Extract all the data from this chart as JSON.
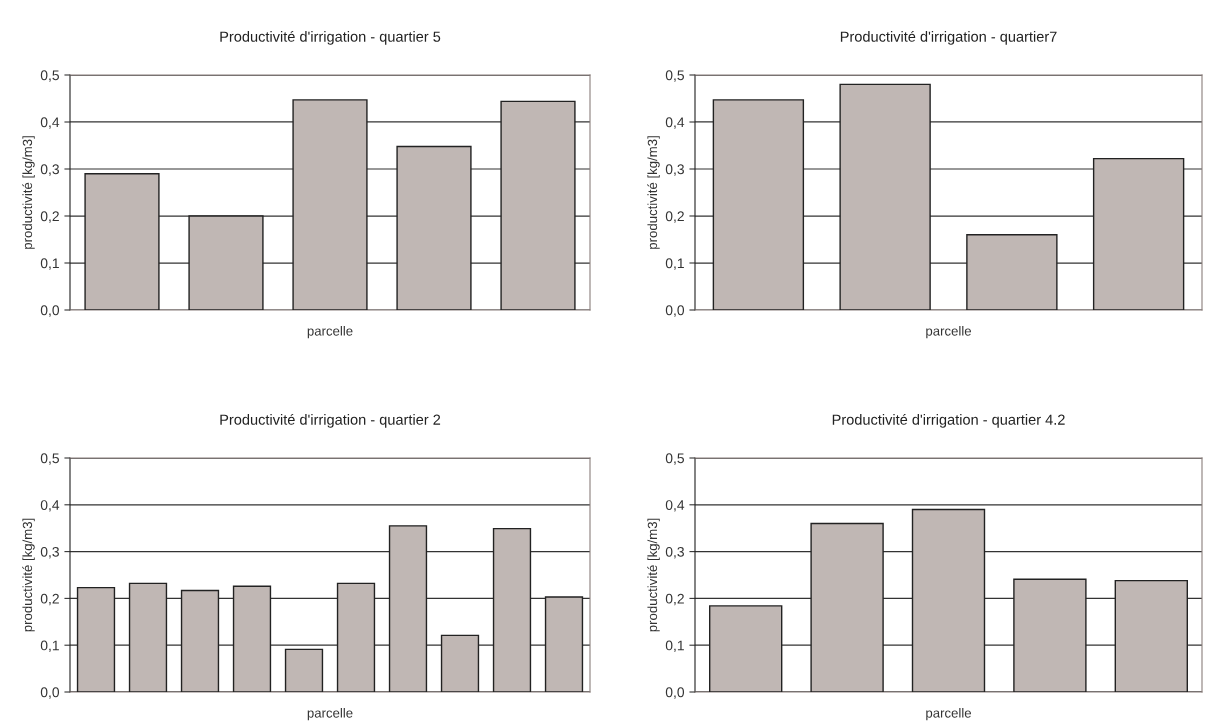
{
  "chart_data": [
    {
      "type": "bar",
      "title": "Productivité d'irrigation - quartier 5",
      "xlabel": "parcelle",
      "ylabel": "productivité [kg/m3]",
      "categories": [
        null,
        null,
        null,
        null,
        null
      ],
      "values": [
        0.29,
        0.2,
        0.447,
        0.348,
        0.444
      ],
      "color": "#c0b7b4",
      "ylim": [
        0,
        0.5
      ],
      "yticks": [
        {
          "value": 0,
          "label": "0,0"
        },
        {
          "value": 0.1,
          "label": "0,1"
        },
        {
          "value": 0.2,
          "label": "0,2"
        },
        {
          "value": 0.3,
          "label": "0,3"
        },
        {
          "value": 0.4,
          "label": "0,4"
        },
        {
          "value": 0.5,
          "label": "0,5"
        }
      ],
      "grid": "y",
      "legend": false
    },
    {
      "type": "bar",
      "title": "Productivité d'irrigation - quartier7",
      "xlabel": "parcelle",
      "ylabel": "productivité [kg/m3]",
      "categories": [
        null,
        null,
        null,
        null
      ],
      "values": [
        0.447,
        0.48,
        0.16,
        0.322
      ],
      "color": "#c0b7b4",
      "ylim": [
        0,
        0.5
      ],
      "yticks": [
        {
          "value": 0,
          "label": "0,0"
        },
        {
          "value": 0.1,
          "label": "0,1"
        },
        {
          "value": 0.2,
          "label": "0,2"
        },
        {
          "value": 0.3,
          "label": "0,3"
        },
        {
          "value": 0.4,
          "label": "0,4"
        },
        {
          "value": 0.5,
          "label": "0,5"
        }
      ],
      "grid": "y",
      "legend": false
    },
    {
      "type": "bar",
      "title": "Productivité d'irrigation - quartier 2",
      "xlabel": "parcelle",
      "ylabel": "productivité [kg/m3]",
      "categories": [
        null,
        null,
        null,
        null,
        null,
        null,
        null,
        null,
        null,
        null
      ],
      "values": [
        0.223,
        0.232,
        0.217,
        0.226,
        0.091,
        0.232,
        0.355,
        0.121,
        0.349,
        0.203
      ],
      "color": "#c0b7b4",
      "ylim": [
        0,
        0.5
      ],
      "yticks": [
        {
          "value": 0,
          "label": "0,0"
        },
        {
          "value": 0.1,
          "label": "0,1"
        },
        {
          "value": 0.2,
          "label": "0,2"
        },
        {
          "value": 0.3,
          "label": "0,3"
        },
        {
          "value": 0.4,
          "label": "0,4"
        },
        {
          "value": 0.5,
          "label": "0,5"
        }
      ],
      "grid": "y",
      "legend": false
    },
    {
      "type": "bar",
      "title": "Productivité d'irrigation - quartier 4.2",
      "xlabel": "parcelle",
      "ylabel": "productivité [kg/m3]",
      "categories": [
        null,
        null,
        null,
        null,
        null
      ],
      "values": [
        0.184,
        0.36,
        0.39,
        0.241,
        0.238
      ],
      "color": "#c0b7b4",
      "ylim": [
        0,
        0.5
      ],
      "yticks": [
        {
          "value": 0,
          "label": "0,0"
        },
        {
          "value": 0.1,
          "label": "0,1"
        },
        {
          "value": 0.2,
          "label": "0,2"
        },
        {
          "value": 0.3,
          "label": "0,3"
        },
        {
          "value": 0.4,
          "label": "0,4"
        },
        {
          "value": 0.5,
          "label": "0,5"
        }
      ],
      "grid": "y",
      "legend": false
    }
  ]
}
